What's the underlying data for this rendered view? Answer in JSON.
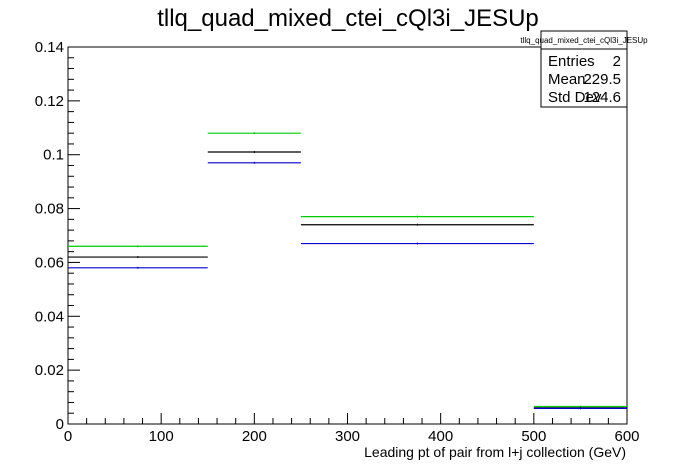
{
  "chart_data": {
    "type": "step",
    "title": "tllq_quad_mixed_ctei_cQl3i_JESUp",
    "xlabel": "Leading pt of pair from l+j collection (GeV)",
    "ylabel": "",
    "xlim": [
      0,
      600
    ],
    "ylim": [
      0,
      0.14
    ],
    "x_ticks": [
      "0",
      "100",
      "200",
      "300",
      "400",
      "500",
      "600"
    ],
    "y_ticks": [
      "0",
      "0.02",
      "0.04",
      "0.06",
      "0.08",
      "0.1",
      "0.12",
      "0.14"
    ],
    "bin_edges": [
      0,
      150,
      250,
      500,
      600
    ],
    "series": [
      {
        "color": "#00cc00",
        "values": [
          0.066,
          0.108,
          0.077,
          0.0065
        ]
      },
      {
        "color": "#000000",
        "values": [
          0.062,
          0.101,
          0.074,
          0.006
        ]
      },
      {
        "color": "#0000cc",
        "values": [
          0.058,
          0.097,
          0.067,
          0.0058
        ]
      }
    ],
    "grid": false,
    "legend": "none"
  },
  "stats_box": {
    "title": "tllq_quad_mixed_ctei_cQl3i_JESUp",
    "rows": [
      {
        "label": "Entries",
        "value": "2"
      },
      {
        "label": "Mean",
        "value": "229.5"
      },
      {
        "label": "Std Dev",
        "value": "124.6"
      }
    ]
  }
}
